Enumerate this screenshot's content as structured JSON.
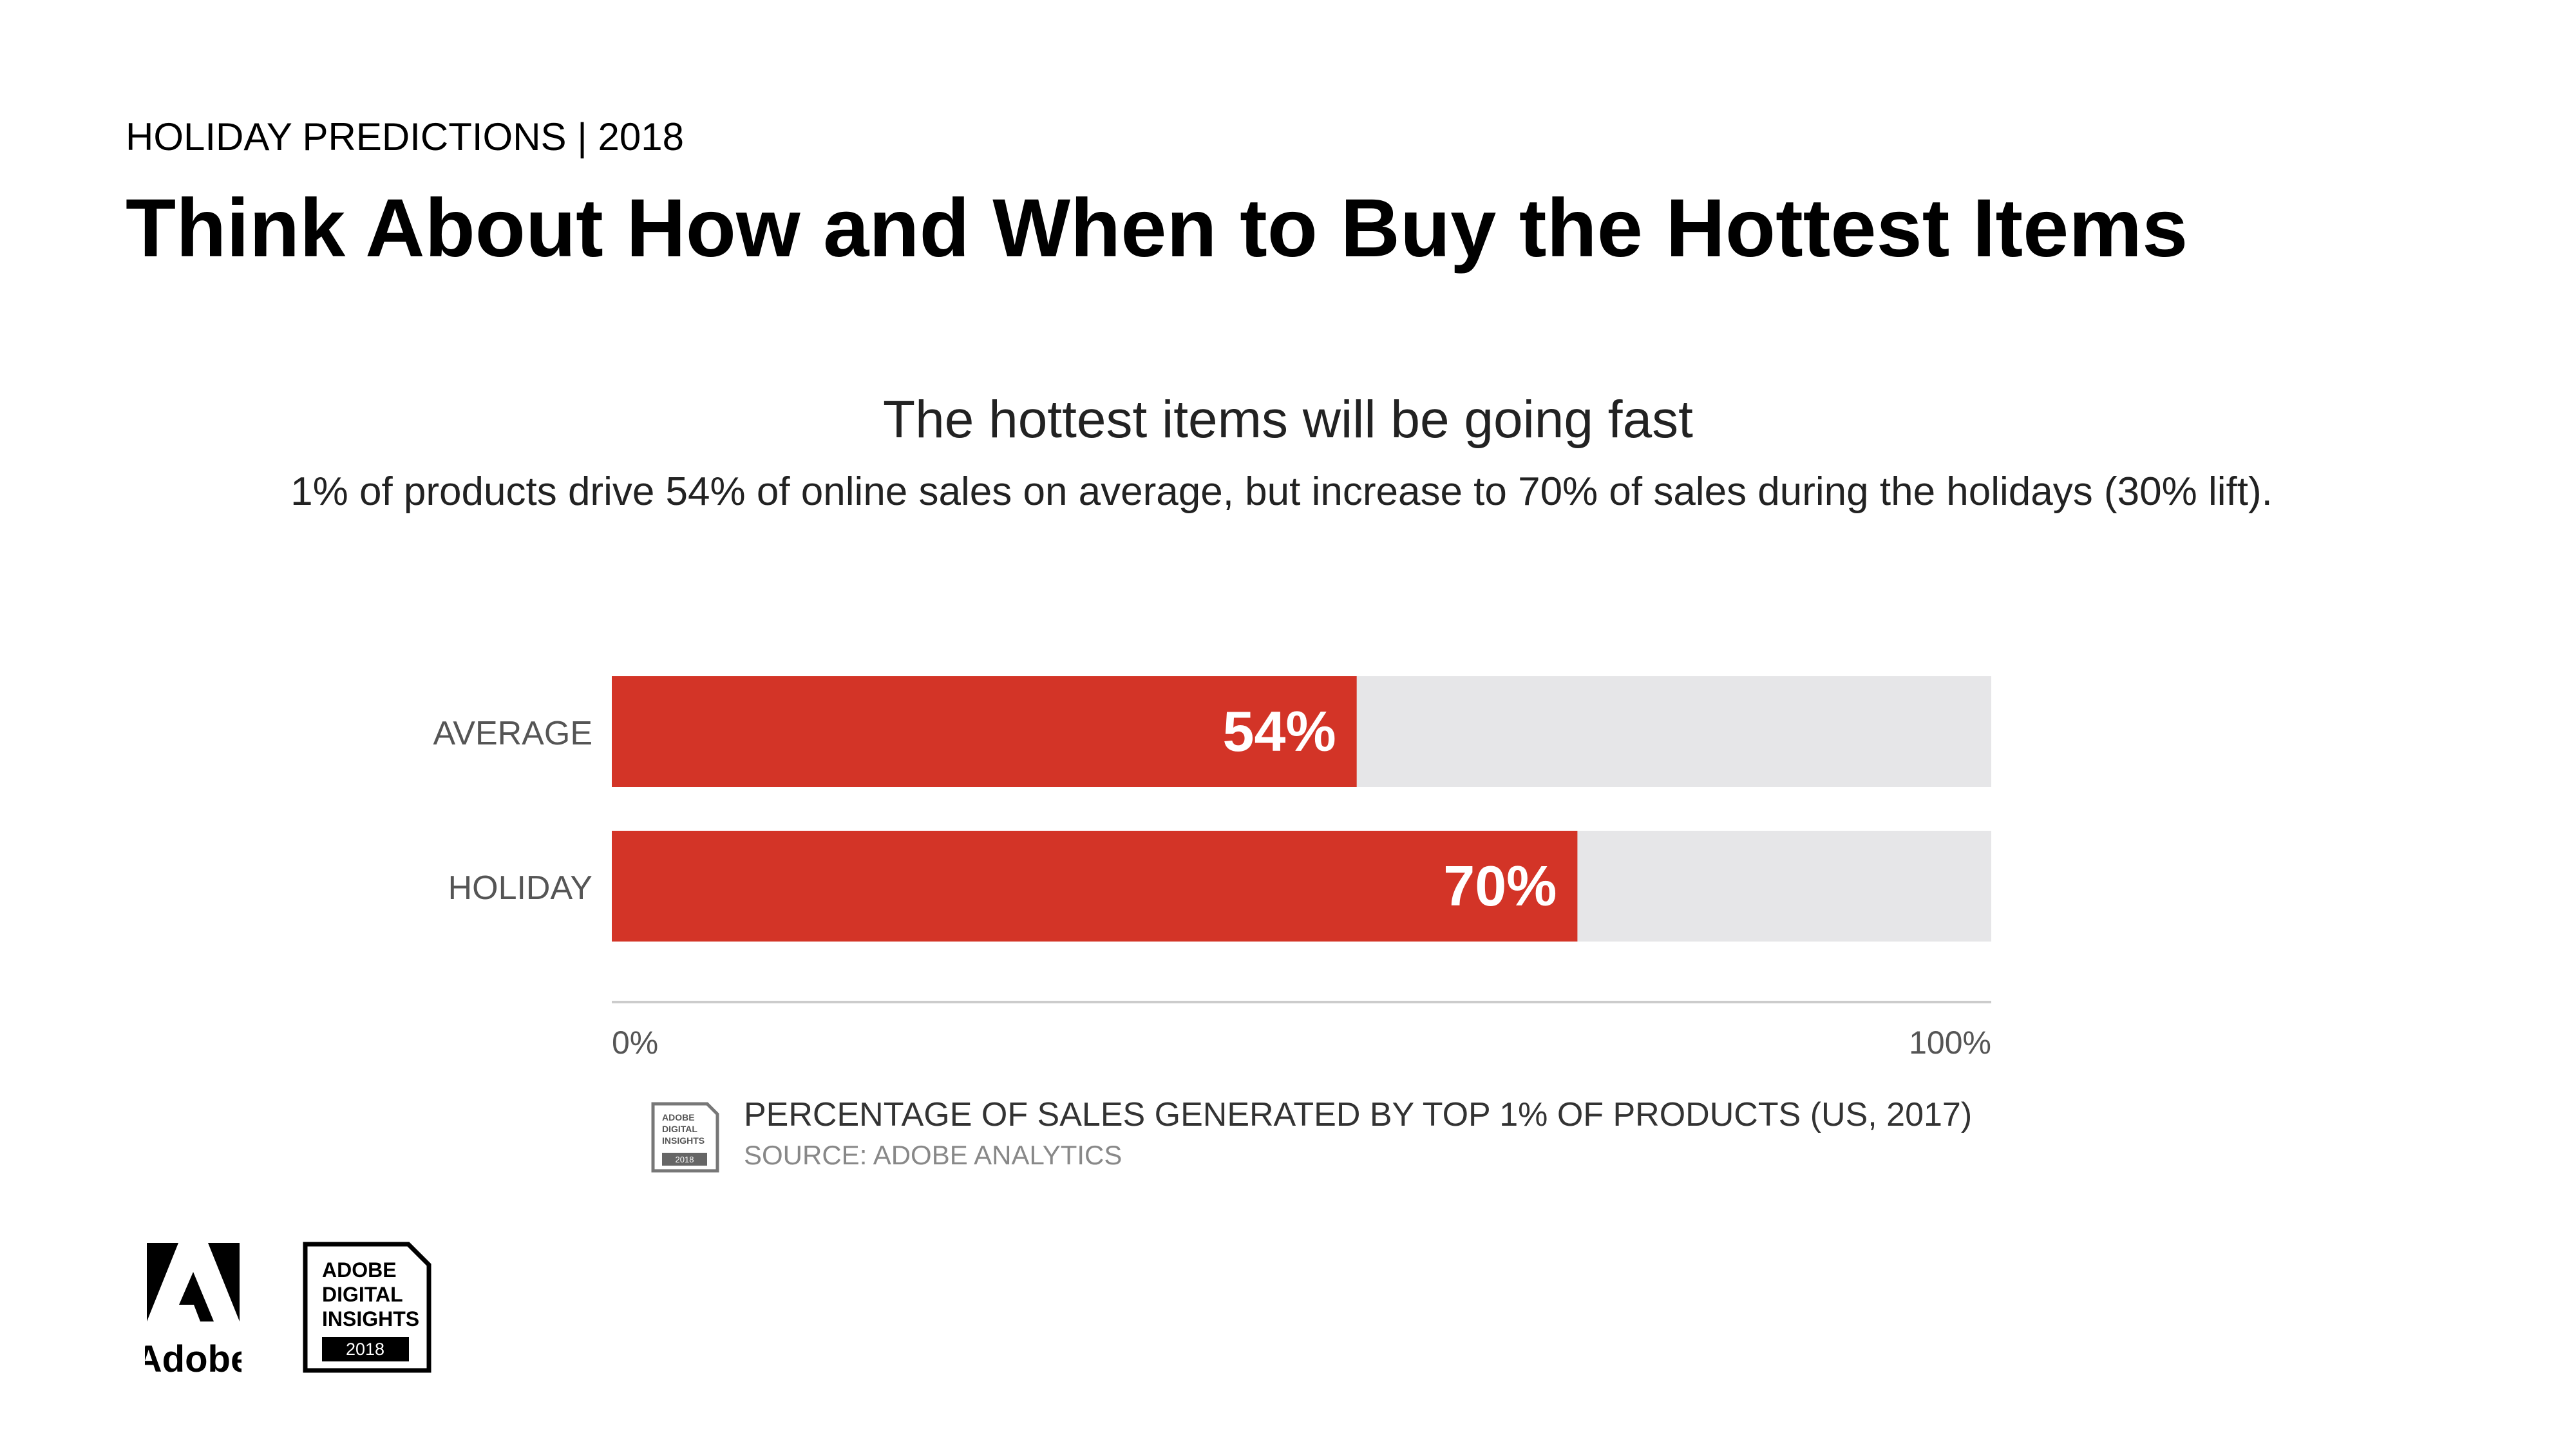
{
  "header": {
    "eyebrow": "HOLIDAY PREDICTIONS | 2018",
    "title": "Think About How and When to Buy the Hottest Items"
  },
  "chart_intro": {
    "subtitle": "The hottest items will be going fast",
    "description": "1% of products drive 54% of online sales on average, but increase to 70% of sales during the holidays (30% lift)."
  },
  "chart_data": {
    "type": "bar",
    "orientation": "horizontal",
    "categories": [
      "AVERAGE",
      "HOLIDAY"
    ],
    "values": [
      54,
      70
    ],
    "value_labels": [
      "54%",
      "70%"
    ],
    "xlim": [
      0,
      100
    ],
    "x_tick_labels": [
      "0%",
      "100%"
    ],
    "bar_color": "#d33427",
    "track_color": "#e6e6e8",
    "caption": "PERCENTAGE OF SALES GENERATED BY TOP 1% OF PRODUCTS (US, 2017)",
    "source": "SOURCE: ADOBE ANALYTICS"
  },
  "footer": {
    "adobe_wordmark": "Adobe",
    "badge_lines": [
      "ADOBE",
      "DIGITAL",
      "INSIGHTS"
    ],
    "badge_year": "2018",
    "mini_badge_lines": [
      "ADOBE",
      "DIGITAL",
      "INSIGHTS"
    ],
    "mini_badge_year": "2018"
  },
  "colors": {
    "text": "#000000",
    "subtle_text": "#555555",
    "source_text": "#888888",
    "axis": "#cccccc",
    "brand_red": "#d33427"
  }
}
